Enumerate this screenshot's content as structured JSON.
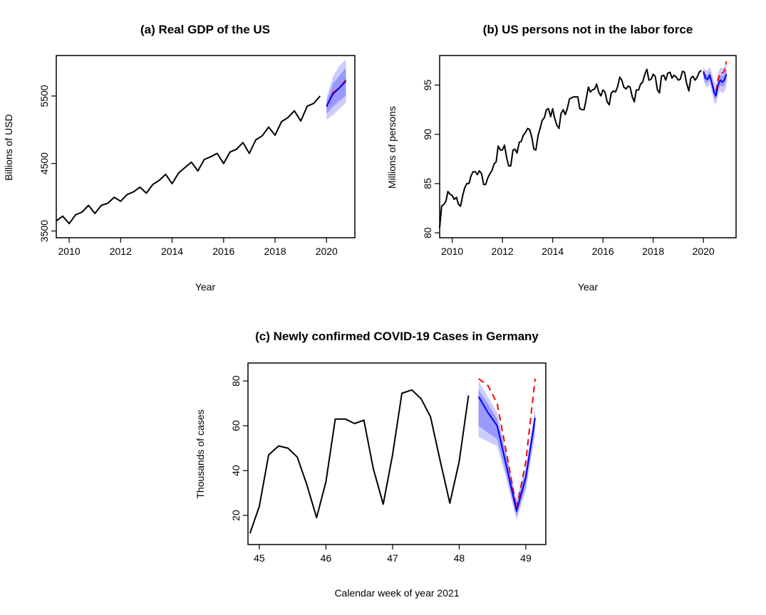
{
  "colors": {
    "observed": "#000000",
    "forecast": "#0000ff",
    "truth": "#ff0000",
    "band_inner": "#9999ff",
    "band_outer": "#ccccff"
  },
  "chart_data": [
    {
      "id": "a",
      "type": "line",
      "title": "(a) Real GDP of the US",
      "xlabel": "Year",
      "ylabel": "Billions of USD",
      "xlim": [
        2009.5,
        2021.1
      ],
      "ylim": [
        3400,
        6100
      ],
      "xticks": [
        2010,
        2012,
        2014,
        2016,
        2018,
        2020
      ],
      "yticks": [
        3500,
        4500,
        5500
      ],
      "truth_style": "solid",
      "series": [
        {
          "role": "observed",
          "x": [
            2009.5,
            2009.75,
            2010.0,
            2010.25,
            2010.5,
            2010.75,
            2011.0,
            2011.25,
            2011.5,
            2011.75,
            2012.0,
            2012.25,
            2012.5,
            2012.75,
            2013.0,
            2013.25,
            2013.5,
            2013.75,
            2014.0,
            2014.25,
            2014.5,
            2014.75,
            2015.0,
            2015.25,
            2015.5,
            2015.75,
            2016.0,
            2016.25,
            2016.5,
            2016.75,
            2017.0,
            2017.25,
            2017.5,
            2017.75,
            2018.0,
            2018.25,
            2018.5,
            2018.75,
            2019.0,
            2019.25,
            2019.5,
            2019.75
          ],
          "y": [
            3650,
            3720,
            3610,
            3740,
            3780,
            3880,
            3760,
            3880,
            3910,
            4000,
            3940,
            4040,
            4080,
            4150,
            4060,
            4190,
            4250,
            4340,
            4200,
            4360,
            4440,
            4520,
            4390,
            4560,
            4600,
            4650,
            4500,
            4670,
            4710,
            4810,
            4650,
            4850,
            4910,
            5040,
            4920,
            5120,
            5180,
            5280,
            5130,
            5350,
            5390,
            5500
          ]
        },
        {
          "role": "truth",
          "x": [
            2020.0,
            2020.25,
            2020.5,
            2020.75
          ],
          "y": [
            5340,
            5550,
            5620,
            5740
          ]
        },
        {
          "role": "forecast",
          "x": [
            2020.0,
            2020.25,
            2020.5,
            2020.75
          ],
          "y": [
            5350,
            5530,
            5620,
            5720
          ]
        }
      ],
      "bands": {
        "x": [
          2020.0,
          2020.25,
          2020.5,
          2020.75
        ],
        "outer_lo": [
          5150,
          5220,
          5310,
          5400
        ],
        "outer_hi": [
          5480,
          5790,
          5950,
          6040
        ],
        "inner_lo": [
          5240,
          5340,
          5430,
          5500
        ],
        "inner_hi": [
          5420,
          5690,
          5800,
          5920
        ]
      }
    },
    {
      "id": "b",
      "type": "line",
      "title": "(b) US persons not in the labor force",
      "xlabel": "Year",
      "ylabel": "Millions of persons",
      "xlim": [
        2009.5,
        2021.3
      ],
      "ylim": [
        79.5,
        98.0
      ],
      "xticks": [
        2010,
        2012,
        2014,
        2016,
        2018,
        2020
      ],
      "yticks": [
        80,
        85,
        90,
        95
      ],
      "truth_style": "dashed",
      "series": [
        {
          "role": "observed",
          "x": [
            2009.5,
            2009.58,
            2009.67,
            2009.75,
            2009.83,
            2009.92,
            2010.0,
            2010.08,
            2010.17,
            2010.25,
            2010.33,
            2010.42,
            2010.5,
            2010.58,
            2010.67,
            2010.75,
            2010.83,
            2010.92,
            2011.0,
            2011.08,
            2011.17,
            2011.25,
            2011.33,
            2011.42,
            2011.5,
            2011.58,
            2011.67,
            2011.75,
            2011.83,
            2011.92,
            2012.0,
            2012.08,
            2012.17,
            2012.25,
            2012.33,
            2012.42,
            2012.5,
            2012.58,
            2012.67,
            2012.75,
            2012.83,
            2012.92,
            2013.0,
            2013.08,
            2013.17,
            2013.25,
            2013.33,
            2013.42,
            2013.5,
            2013.58,
            2013.67,
            2013.75,
            2013.83,
            2013.92,
            2014.0,
            2014.08,
            2014.17,
            2014.25,
            2014.33,
            2014.42,
            2014.5,
            2014.58,
            2014.67,
            2014.75,
            2014.83,
            2014.92,
            2015.0,
            2015.08,
            2015.17,
            2015.25,
            2015.33,
            2015.42,
            2015.5,
            2015.58,
            2015.67,
            2015.75,
            2015.83,
            2015.92,
            2016.0,
            2016.08,
            2016.17,
            2016.25,
            2016.33,
            2016.42,
            2016.5,
            2016.58,
            2016.67,
            2016.75,
            2016.83,
            2016.92,
            2017.0,
            2017.08,
            2017.17,
            2017.25,
            2017.33,
            2017.42,
            2017.5,
            2017.58,
            2017.67,
            2017.75,
            2017.83,
            2017.92,
            2018.0,
            2018.08,
            2018.17,
            2018.25,
            2018.33,
            2018.42,
            2018.5,
            2018.58,
            2018.67,
            2018.75,
            2018.83,
            2018.92,
            2019.0,
            2019.08,
            2019.17,
            2019.25,
            2019.33,
            2019.42,
            2019.5,
            2019.58,
            2019.67,
            2019.75,
            2019.83,
            2019.92
          ],
          "y": [
            80.5,
            82.7,
            82.9,
            83.2,
            84.2,
            83.9,
            83.8,
            83.4,
            83.6,
            82.9,
            82.7,
            83.8,
            84.6,
            85.0,
            85.0,
            85.8,
            86.2,
            86.2,
            85.9,
            86.3,
            86.0,
            84.9,
            84.9,
            85.6,
            86.0,
            86.3,
            87.0,
            87.2,
            88.8,
            88.4,
            88.4,
            88.9,
            87.6,
            86.8,
            86.8,
            88.4,
            88.5,
            88.1,
            89.2,
            89.3,
            89.9,
            90.2,
            90.6,
            90.5,
            89.7,
            88.5,
            88.4,
            89.9,
            90.6,
            91.4,
            91.7,
            92.5,
            92.6,
            91.8,
            92.6,
            91.6,
            90.9,
            90.6,
            92.1,
            92.5,
            92.0,
            92.6,
            93.6,
            93.7,
            93.8,
            93.8,
            93.8,
            92.6,
            92.5,
            92.5,
            93.5,
            94.8,
            94.3,
            94.5,
            94.6,
            95.1,
            94.3,
            93.9,
            94.5,
            94.3,
            93.3,
            93.0,
            94.2,
            94.4,
            94.3,
            94.8,
            95.8,
            95.5,
            94.8,
            94.6,
            94.9,
            94.8,
            93.8,
            93.3,
            94.5,
            94.5,
            95.1,
            95.3,
            96.1,
            96.6,
            95.5,
            95.6,
            96.1,
            95.9,
            94.5,
            94.2,
            95.9,
            96.0,
            95.5,
            96.2,
            96.3,
            95.7,
            96.0,
            95.8,
            95.5,
            95.6,
            96.4,
            96.3,
            95.2,
            94.4,
            95.7,
            95.9,
            95.5,
            95.8,
            96.3,
            96.5
          ]
        },
        {
          "role": "truth",
          "x": [
            2020.0,
            2020.08,
            2020.17,
            2020.25,
            2020.33,
            2020.42,
            2020.5,
            2020.58,
            2020.67,
            2020.75,
            2020.83,
            2020.92
          ],
          "y": [
            96.4,
            95.8,
            95.6,
            96.0,
            95.2,
            94.5,
            94.3,
            95.5,
            96.3,
            96.2,
            96.4,
            97.4
          ]
        },
        {
          "role": "forecast",
          "x": [
            2020.0,
            2020.08,
            2020.17,
            2020.25,
            2020.33,
            2020.42,
            2020.5,
            2020.58,
            2020.67,
            2020.75,
            2020.83,
            2020.92
          ],
          "y": [
            96.3,
            95.7,
            95.6,
            96.0,
            95.3,
            94.3,
            93.9,
            95.0,
            95.5,
            95.3,
            95.5,
            96.1
          ]
        }
      ],
      "bands": {
        "x": [
          2020.0,
          2020.08,
          2020.17,
          2020.25,
          2020.33,
          2020.42,
          2020.5,
          2020.58,
          2020.67,
          2020.75,
          2020.83,
          2020.92
        ],
        "outer_lo": [
          95.5,
          94.9,
          94.8,
          95.1,
          94.3,
          93.3,
          93.0,
          94.0,
          94.4,
          94.2,
          94.3,
          94.9
        ],
        "outer_hi": [
          96.9,
          96.5,
          96.5,
          96.9,
          96.3,
          95.4,
          95.1,
          96.2,
          96.8,
          96.7,
          96.8,
          97.3
        ],
        "inner_lo": [
          95.9,
          95.3,
          95.2,
          95.6,
          94.8,
          93.8,
          93.5,
          94.5,
          95.0,
          94.8,
          94.9,
          95.5
        ],
        "inner_hi": [
          96.6,
          96.1,
          96.0,
          96.4,
          95.8,
          94.8,
          94.4,
          95.5,
          96.0,
          95.9,
          96.1,
          96.7
        ]
      }
    },
    {
      "id": "c",
      "type": "line",
      "title": "(c) Newly confirmed COVID-19 Cases in Germany",
      "xlabel": "Calendar week of year 2021",
      "ylabel": "Thousands of cases",
      "xlim": [
        44.83,
        49.3
      ],
      "ylim": [
        7,
        88
      ],
      "xticks": [
        45,
        46,
        47,
        48,
        49
      ],
      "yticks": [
        20,
        40,
        60,
        80
      ],
      "truth_style": "dashed",
      "series": [
        {
          "role": "observed",
          "x": [
            44.86,
            45.0,
            45.14,
            45.29,
            45.43,
            45.57,
            45.71,
            45.86,
            46.0,
            46.14,
            46.29,
            46.43,
            46.57,
            46.71,
            46.86,
            47.0,
            47.14,
            47.29,
            47.43,
            47.57,
            47.71,
            47.86,
            48.0,
            48.14
          ],
          "y": [
            12,
            24,
            47,
            51,
            50,
            46,
            34,
            19,
            35,
            63,
            63,
            61,
            62.5,
            41,
            25,
            47,
            74.5,
            76,
            72,
            64,
            45,
            25.5,
            44,
            73.5
          ]
        },
        {
          "role": "truth",
          "x": [
            48.29,
            48.43,
            48.57,
            48.71,
            48.86,
            49.0,
            49.14
          ],
          "y": [
            81,
            78,
            70,
            48,
            23,
            44,
            81
          ]
        },
        {
          "role": "forecast",
          "x": [
            48.29,
            48.43,
            48.57,
            48.71,
            48.86,
            49.0,
            49.14
          ],
          "y": [
            73,
            66,
            60,
            42,
            22,
            37,
            63.5
          ]
        }
      ],
      "bands": {
        "x": [
          48.29,
          48.43,
          48.57,
          48.71,
          48.86,
          49.0,
          49.14
        ],
        "outer_lo": [
          55,
          53,
          51,
          36,
          18,
          31,
          56
        ],
        "outer_hi": [
          80,
          73,
          66,
          48,
          27,
          42,
          68
        ],
        "inner_lo": [
          60,
          57,
          54,
          38,
          19.5,
          33,
          59
        ],
        "inner_hi": [
          76,
          70,
          63,
          46,
          25.5,
          40,
          66
        ]
      }
    }
  ]
}
